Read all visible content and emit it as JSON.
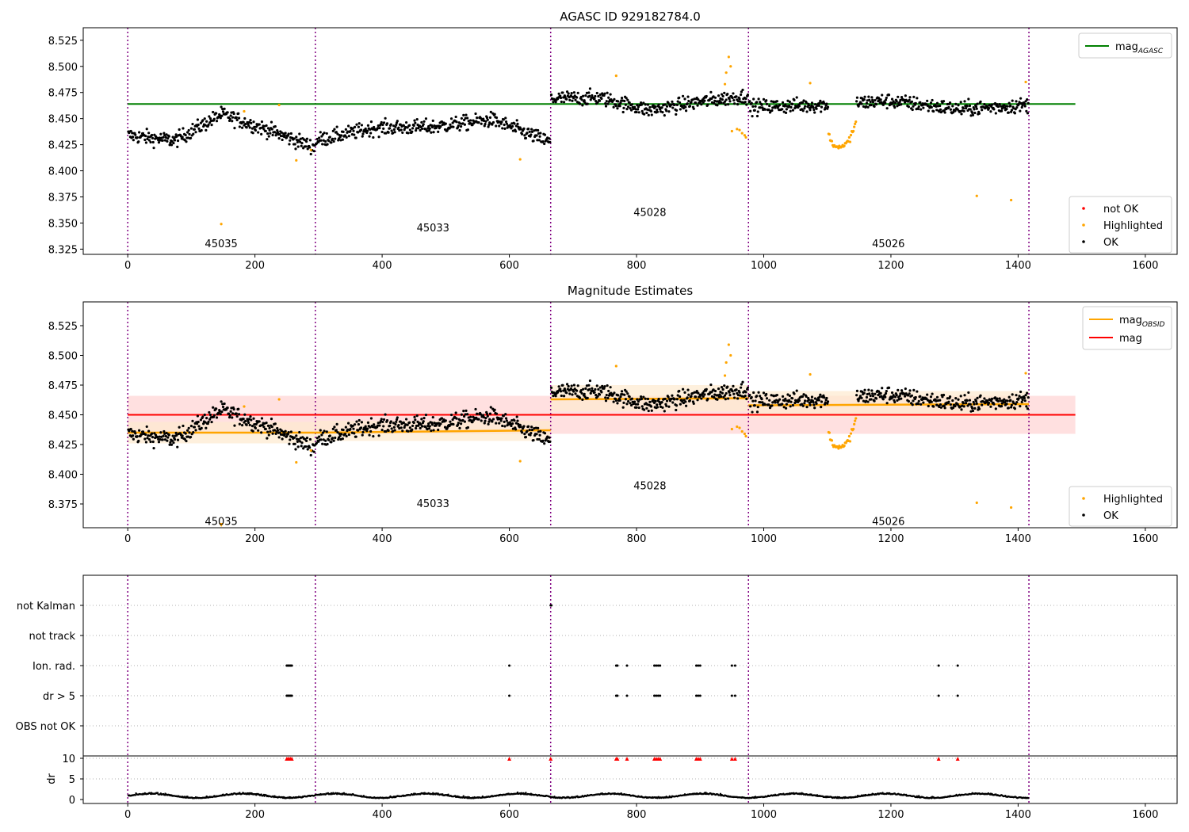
{
  "colors": {
    "ok": "#000000",
    "highlighted": "#ffa500",
    "not_ok": "#ff0000",
    "agasc_line": "#008000",
    "obsid_line": "#ffa500",
    "mag_line": "#ff0000",
    "mag_band": "#ffe0e0",
    "obsid_band": "#fde9cf",
    "separator": "#800080",
    "grid": "#b0b0b0"
  },
  "chart_data": [
    {
      "type": "scatter",
      "title": "AGASC ID 929182784.0",
      "xlim": [
        -70,
        1650
      ],
      "ylim": [
        8.32,
        8.537
      ],
      "xticks": [
        0,
        200,
        400,
        600,
        800,
        1000,
        1200,
        1400,
        1600
      ],
      "yticks": [
        8.325,
        8.35,
        8.375,
        8.4,
        8.425,
        8.45,
        8.475,
        8.5,
        8.525
      ],
      "separators": [
        0,
        295,
        665,
        976,
        1417
      ],
      "obsids": [
        {
          "label": "45035",
          "x": 147,
          "y": 8.33
        },
        {
          "label": "45033",
          "x": 480,
          "y": 8.345
        },
        {
          "label": "45028",
          "x": 821,
          "y": 8.36
        },
        {
          "label": "45026",
          "x": 1196,
          "y": 8.33
        }
      ],
      "segments": [
        {
          "x0": 0,
          "x1": 295,
          "base": 8.434,
          "trend": [
            0.0,
            -0.005,
            0.02,
            0.005,
            -0.012
          ]
        },
        {
          "x0": 295,
          "x1": 665,
          "base": 8.437,
          "trend": [
            -0.008,
            0.004,
            0.005,
            0.012,
            -0.01
          ]
        },
        {
          "x0": 665,
          "x1": 976,
          "base": 8.464,
          "trend": [
            0.005,
            0.006,
            -0.006,
            0.002,
            0.008
          ]
        },
        {
          "x0": 976,
          "x1": 1417,
          "base": 8.461,
          "trend": [
            0.0,
            0.002,
            0.006,
            -0.002,
            0.002
          ]
        }
      ],
      "highlighted": [
        [
          147,
          8.349
        ],
        [
          183,
          8.457
        ],
        [
          238,
          8.463
        ],
        [
          265,
          8.41
        ],
        [
          288,
          8.42
        ],
        [
          617,
          8.411
        ],
        [
          768,
          8.491
        ],
        [
          945,
          8.509
        ],
        [
          941,
          8.494
        ],
        [
          948,
          8.5
        ],
        [
          939,
          8.483
        ],
        [
          950,
          8.438
        ],
        [
          958,
          8.44
        ],
        [
          962,
          8.439
        ],
        [
          966,
          8.436
        ],
        [
          970,
          8.434
        ],
        [
          972,
          8.432
        ],
        [
          1073,
          8.484
        ],
        [
          1335,
          8.376
        ],
        [
          1389,
          8.372
        ],
        [
          1412,
          8.485
        ]
      ],
      "dip": {
        "x0": 1102,
        "x1": 1145,
        "center": 1120,
        "depth": 8.422
      },
      "legend_lines": [
        {
          "label": "mag",
          "sub": "AGASC",
          "color": "#008000"
        }
      ],
      "legend_points": [
        {
          "label": "not OK",
          "color": "#ff0000"
        },
        {
          "label": "Highlighted",
          "color": "#ffa500"
        },
        {
          "label": "OK",
          "color": "#000000"
        }
      ],
      "agasc_mag": 8.464
    },
    {
      "type": "scatter",
      "title": "Magnitude Estimates",
      "xlim": [
        -70,
        1650
      ],
      "ylim": [
        8.355,
        8.545
      ],
      "xticks": [
        0,
        200,
        400,
        600,
        800,
        1000,
        1200,
        1400,
        1600
      ],
      "yticks": [
        8.375,
        8.4,
        8.425,
        8.45,
        8.475,
        8.5,
        8.525
      ],
      "obsids": [
        {
          "label": "45035",
          "x": 147,
          "y": 8.36
        },
        {
          "label": "45033",
          "x": 480,
          "y": 8.375
        },
        {
          "label": "45028",
          "x": 821,
          "y": 8.39
        },
        {
          "label": "45026",
          "x": 1196,
          "y": 8.36
        }
      ],
      "mag": 8.45,
      "mag_band": [
        8.434,
        8.466
      ],
      "obsid_mags": [
        {
          "x0": 0,
          "x1": 295,
          "y0": 8.435,
          "y1": 8.435,
          "lo": 8.426,
          "hi": 8.444
        },
        {
          "x0": 295,
          "x1": 665,
          "y0": 8.435,
          "y1": 8.437,
          "lo": 8.428,
          "hi": 8.445
        },
        {
          "x0": 665,
          "x1": 976,
          "y0": 8.463,
          "y1": 8.464,
          "lo": 8.453,
          "hi": 8.475
        },
        {
          "x0": 976,
          "x1": 1417,
          "y0": 8.458,
          "y1": 8.459,
          "lo": 8.448,
          "hi": 8.47
        }
      ],
      "legend_lines": [
        {
          "label": "mag",
          "sub": "OBSID",
          "color": "#ffa500"
        },
        {
          "label": "mag",
          "sub": "",
          "color": "#ff0000"
        }
      ],
      "legend_points": [
        {
          "label": "Highlighted",
          "color": "#ffa500"
        },
        {
          "label": "OK",
          "color": "#000000"
        }
      ]
    },
    {
      "type": "scatter",
      "title": "",
      "categories": [
        "not Kalman",
        "not track",
        "Ion. rad.",
        "dr > 5",
        "OBS not OK"
      ],
      "flags": {
        "not Kalman": [
          665,
          666
        ],
        "Ion. rad.": [
          250,
          252,
          254,
          256,
          258,
          600,
          768,
          770,
          785,
          828,
          831,
          834,
          837,
          894,
          897,
          900,
          950,
          955,
          1275,
          1305
        ],
        "dr > 5": [
          250,
          252,
          254,
          256,
          258,
          600,
          768,
          770,
          785,
          828,
          831,
          834,
          837,
          894,
          897,
          900,
          950,
          955,
          1275,
          1305
        ]
      },
      "dr_ylabel": "dr",
      "dr_yticks": [
        0,
        5,
        10
      ],
      "dr_clipped": [
        250,
        252,
        254,
        256,
        258,
        600,
        665,
        768,
        770,
        785,
        828,
        831,
        834,
        837,
        894,
        897,
        900,
        950,
        955,
        1275,
        1305
      ],
      "xticks": [
        0,
        200,
        400,
        600,
        800,
        1000,
        1200,
        1400,
        1600
      ],
      "xlim": [
        -70,
        1650
      ]
    }
  ]
}
